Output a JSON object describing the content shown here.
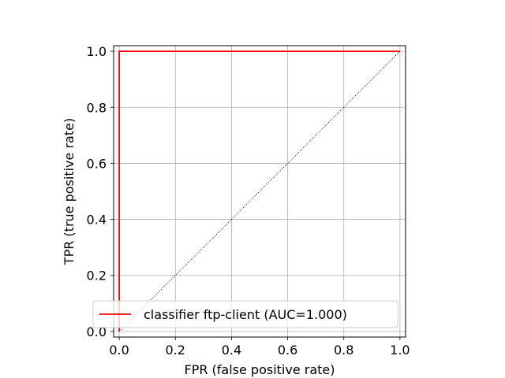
{
  "chart_data": {
    "type": "line",
    "xlabel": "FPR (false positive rate)",
    "ylabel": "TPR (true positive rate)",
    "xlim": [
      -0.02,
      1.02
    ],
    "ylim": [
      -0.02,
      1.02
    ],
    "xticks": [
      0.0,
      0.2,
      0.4,
      0.6,
      0.8,
      1.0
    ],
    "yticks": [
      0.0,
      0.2,
      0.4,
      0.6,
      0.8,
      1.0
    ],
    "xtick_labels": [
      "0.0",
      "0.2",
      "0.4",
      "0.6",
      "0.8",
      "1.0"
    ],
    "ytick_labels": [
      "0.0",
      "0.2",
      "0.4",
      "0.6",
      "0.8",
      "1.0"
    ],
    "grid": true,
    "legend_position": "lower-left",
    "series": [
      {
        "name": "classifier ftp-client (AUC=1.000)",
        "color": "#ff0000",
        "style": "solid",
        "x": [
          0.0,
          0.0,
          1.0
        ],
        "y": [
          0.0,
          1.0,
          1.0
        ]
      },
      {
        "color": "#000000",
        "style": "dotted",
        "x": [
          0.0,
          1.0
        ],
        "y": [
          0.0,
          1.0
        ]
      }
    ]
  }
}
